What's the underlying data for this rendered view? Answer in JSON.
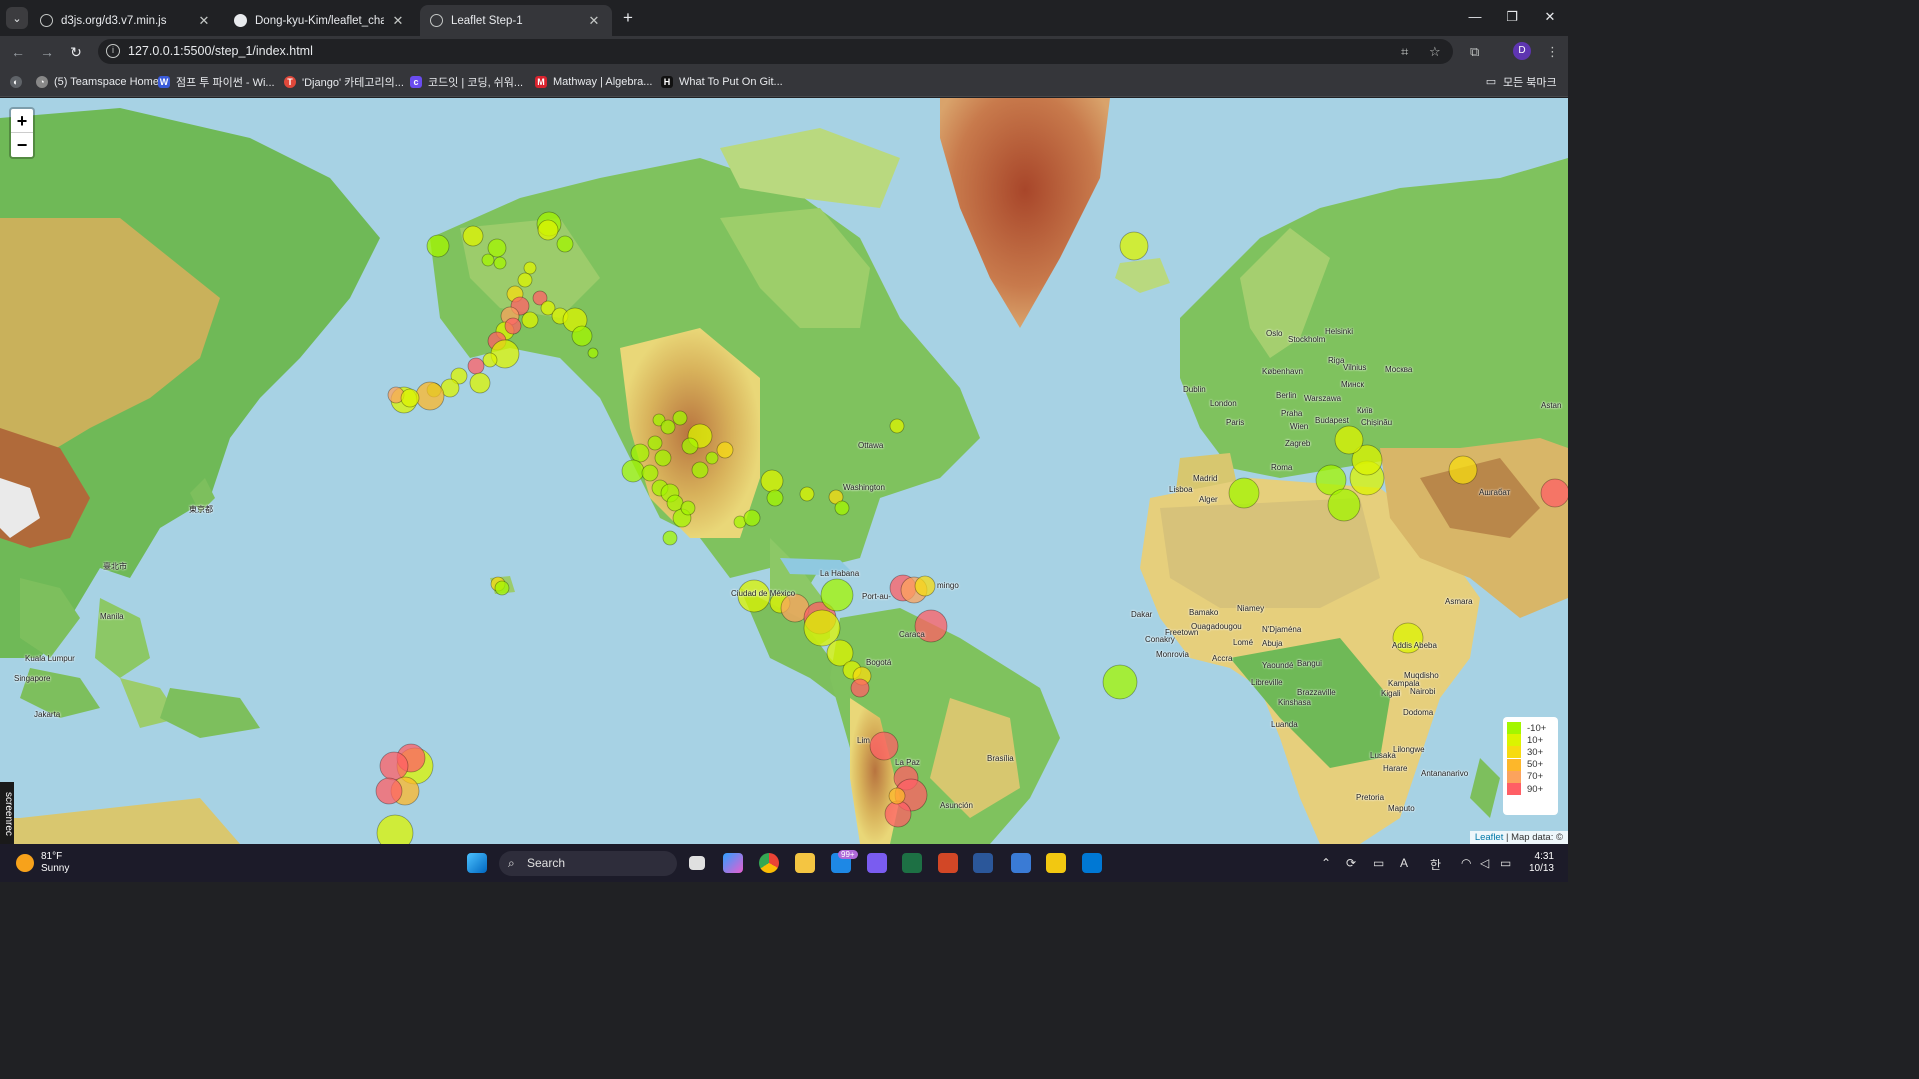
{
  "browser": {
    "tabs": [
      {
        "title": "d3js.org/d3.v7.min.js",
        "active": false,
        "icon": "globe-icon"
      },
      {
        "title": "Dong-kyu-Kim/leaflet_challeng",
        "active": false,
        "icon": "github-icon"
      },
      {
        "title": "Leaflet Step-1",
        "active": true,
        "icon": "globe-icon"
      }
    ],
    "url": "127.0.0.1:5500/step_1/index.html",
    "profile_initial": "D",
    "bookmarks": [
      {
        "label": "(5) Teamspace Home",
        "color": "#888888",
        "icon_char": "◔"
      },
      {
        "label": "점프 투 파이썬 - Wi...",
        "color": "#3a5bd9",
        "icon_char": "W"
      },
      {
        "label": "'Django' 카테고리의...",
        "color": "#e0483a",
        "icon_char": "T"
      },
      {
        "label": "코드잇 | 코딩, 쉬워...",
        "color": "#6a4cf0",
        "icon_char": "c"
      },
      {
        "label": "Mathway | Algebra...",
        "color": "#d9232e",
        "icon_char": "M"
      },
      {
        "label": "What To Put On Git...",
        "color": "#111111",
        "icon_char": "H"
      }
    ],
    "all_bookmarks": "모든 북마크"
  },
  "map": {
    "zoom_in": "+",
    "zoom_out": "−",
    "legend": [
      {
        "label": "-10+",
        "color": "#a3f600"
      },
      {
        "label": "10+",
        "color": "#dcf400"
      },
      {
        "label": "30+",
        "color": "#f7db11"
      },
      {
        "label": "50+",
        "color": "#fdb72a"
      },
      {
        "label": "70+",
        "color": "#fca35d"
      },
      {
        "label": "90+",
        "color": "#ff5f65"
      }
    ],
    "attribution_link": "Leaflet",
    "attribution_text": " | Map data: ©",
    "city_labels": [
      {
        "name": "Ottawa"
      },
      {
        "name": "Washington"
      },
      {
        "name": "La Habana"
      },
      {
        "name": "Port-au-"
      },
      {
        "name": "mingo"
      },
      {
        "name": "Ciudad de México"
      },
      {
        "name": "Bogotá"
      },
      {
        "name": "Caraca"
      },
      {
        "name": "Lim"
      },
      {
        "name": "La Paz"
      },
      {
        "name": "Brasília"
      },
      {
        "name": "Asunción"
      },
      {
        "name": "Oslo"
      },
      {
        "name": "Stockholm"
      },
      {
        "name": "Helsinki"
      },
      {
        "name": "Riga"
      },
      {
        "name": "København"
      },
      {
        "name": "Vilnius"
      },
      {
        "name": "Москва"
      },
      {
        "name": "Минск"
      },
      {
        "name": "Dublin"
      },
      {
        "name": "Berlin"
      },
      {
        "name": "Warszawa"
      },
      {
        "name": "London"
      },
      {
        "name": "Praha"
      },
      {
        "name": "Київ"
      },
      {
        "name": "Paris"
      },
      {
        "name": "Wien"
      },
      {
        "name": "Budapest"
      },
      {
        "name": "Chișinău"
      },
      {
        "name": "Zagreb"
      },
      {
        "name": "Madrid"
      },
      {
        "name": "Roma"
      },
      {
        "name": "Lisboa"
      },
      {
        "name": "Alger"
      },
      {
        "name": "Ашгабат"
      },
      {
        "name": "Dakar"
      },
      {
        "name": "Bamako"
      },
      {
        "name": "Niamey"
      },
      {
        "name": "Conakry"
      },
      {
        "name": "Freetown"
      },
      {
        "name": "Ouagadougou"
      },
      {
        "name": "N'Djaména"
      },
      {
        "name": "Monrovia"
      },
      {
        "name": "Accra"
      },
      {
        "name": "Lomé"
      },
      {
        "name": "Abuja"
      },
      {
        "name": "Yaoundé"
      },
      {
        "name": "Bangui"
      },
      {
        "name": "Libreville"
      },
      {
        "name": "Brazzaville"
      },
      {
        "name": "Kinshasa"
      },
      {
        "name": "Kampala"
      },
      {
        "name": "Nairobi"
      },
      {
        "name": "Kigali"
      },
      {
        "name": "Luanda"
      },
      {
        "name": "Dodoma"
      },
      {
        "name": "Lusaka"
      },
      {
        "name": "Lilongwe"
      },
      {
        "name": "Harare"
      },
      {
        "name": "Pretoria"
      },
      {
        "name": "Maputo"
      },
      {
        "name": "Antananarivo"
      },
      {
        "name": "Addis Abeba"
      },
      {
        "name": "Asmara"
      },
      {
        "name": "Muqdisho"
      },
      {
        "name": "Manila"
      },
      {
        "name": "Singapore"
      },
      {
        "name": "Jakarta"
      },
      {
        "name": "Kuala Lumpur"
      },
      {
        "name": "東京都"
      },
      {
        "name": "臺北市"
      },
      {
        "name": "Astan"
      }
    ]
  },
  "overlay": {
    "recorder": "screenrec"
  },
  "taskbar": {
    "temperature": "81°F",
    "condition": "Sunny",
    "search_placeholder": "Search",
    "mail_badge": "99+",
    "time": "4:31",
    "date": "10/13"
  }
}
